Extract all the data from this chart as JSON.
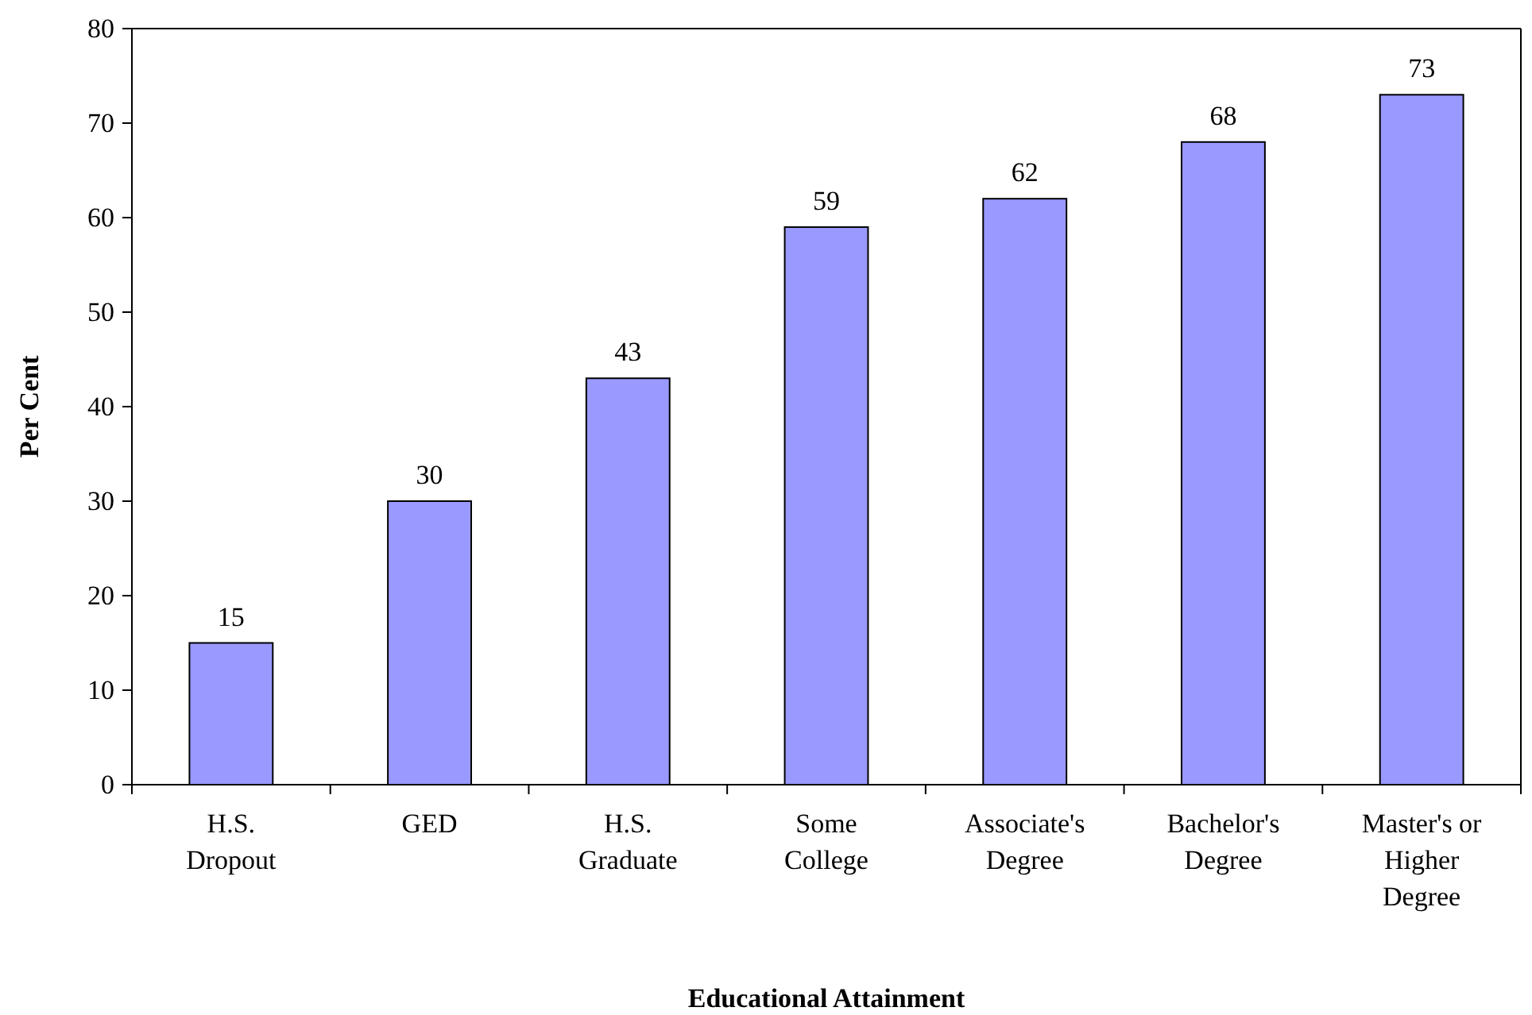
{
  "chart_data": {
    "type": "bar",
    "xlabel": "Educational Attainment",
    "ylabel": "Per Cent",
    "categories": [
      "H.S. Dropout",
      "GED",
      "H.S. Graduate",
      "Some College",
      "Associate's Degree",
      "Bachelor's Degree",
      "Master's or Higher Degree"
    ],
    "values": [
      15,
      30,
      43,
      59,
      62,
      68,
      73
    ],
    "color": "#9999ff",
    "ylim": [
      0,
      80
    ],
    "yticks": [
      0,
      10,
      20,
      30,
      40,
      50,
      60,
      70,
      80
    ],
    "grid": false,
    "data_labels": true
  }
}
